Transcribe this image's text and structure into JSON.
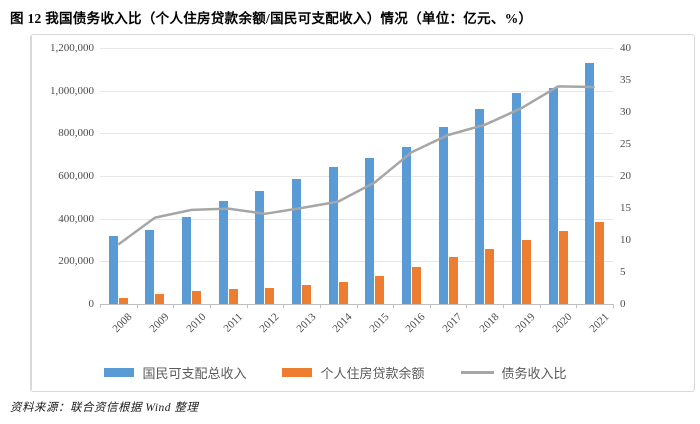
{
  "title": "图 12  我国债务收入比（个人住房贷款余额/国民可支配收入）情况（单位：亿元、%）",
  "source": "资料来源：联合资信根据 Wind 整理",
  "colors": {
    "income_bar": "#5B9BD5",
    "loan_bar": "#ED7D31",
    "ratio_line": "#A6A6A6",
    "grid": "#E7E7E7",
    "axis": "#BFBFBF",
    "tick_text": "#4A4A4A",
    "legend_text": "#595959",
    "frame_border": "#D9D9D9"
  },
  "chart_data": {
    "type": "bar",
    "subtype": "grouped bars with secondary-axis line",
    "title": "我国债务收入比（个人住房贷款余额/国民可支配收入）情况",
    "unit": "亿元、%",
    "categories": [
      "2008",
      "2009",
      "2010",
      "2011",
      "2012",
      "2013",
      "2014",
      "2015",
      "2016",
      "2017",
      "2018",
      "2019",
      "2020",
      "2021"
    ],
    "series": [
      {
        "name": "国民可支配总收入",
        "type": "bar",
        "axis": "left",
        "color": "#5B9BD5",
        "values": [
          321000,
          347000,
          409000,
          481000,
          532000,
          587000,
          644000,
          683000,
          737000,
          830000,
          913000,
          987000,
          1014000,
          1130000
        ]
      },
      {
        "name": "个人住房贷款余额",
        "type": "bar",
        "axis": "left",
        "color": "#ED7D31",
        "values": [
          30000,
          47000,
          60000,
          71000,
          75000,
          88000,
          103000,
          130000,
          175000,
          219000,
          256000,
          302000,
          344000,
          383000
        ]
      },
      {
        "name": "债务收入比",
        "type": "line",
        "axis": "right",
        "color": "#A6A6A6",
        "values": [
          9.3,
          13.5,
          14.7,
          14.9,
          14.1,
          15.0,
          16.0,
          19.0,
          23.7,
          26.4,
          28.0,
          30.6,
          34.0,
          33.9
        ]
      }
    ],
    "left_axis": {
      "min": 0,
      "max": 1200000,
      "step": 200000,
      "tick_labels": [
        "1,200,000",
        "1,000,000",
        "800,000",
        "600,000",
        "400,000",
        "200,000",
        "0"
      ]
    },
    "right_axis": {
      "min": 0,
      "max": 40,
      "step": 5,
      "tick_labels": [
        "40",
        "35",
        "30",
        "25",
        "20",
        "15",
        "10",
        "5",
        "0"
      ]
    },
    "grid": true,
    "legend_position": "bottom",
    "x_label_rotation": -45
  }
}
